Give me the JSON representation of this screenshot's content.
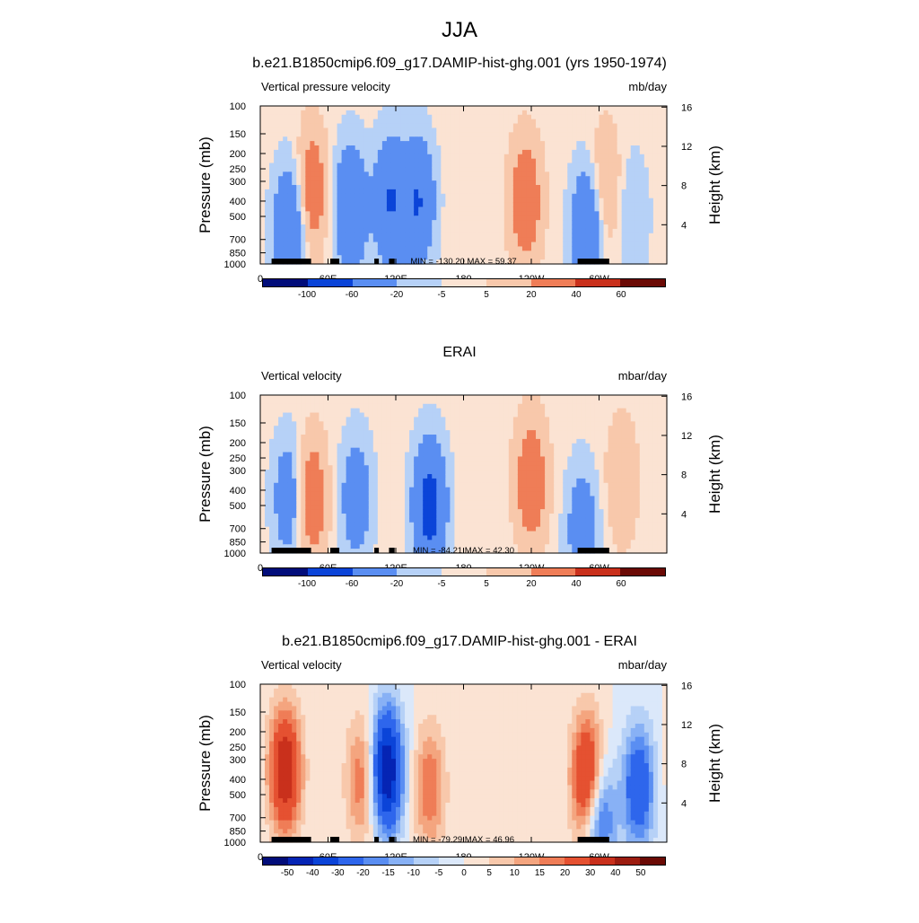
{
  "figure": {
    "title": "JJA"
  },
  "chart_data": [
    {
      "type": "heatmap",
      "title": "b.e21.B1850cmip6.f09_g17.DAMIP-hist-ghg.001 (yrs 1950-1974)",
      "left_label": "Vertical pressure velocity",
      "units": "mb/day",
      "ylabel": "Pressure (mb)",
      "y2label": "Height (km)",
      "x_ticks": [
        "0",
        "60E",
        "120E",
        "180",
        "120W",
        "60W"
      ],
      "y_ticks": [
        "100",
        "150",
        "200",
        "250",
        "300",
        "400",
        "500",
        "700",
        "850",
        "1000"
      ],
      "y2_ticks": [
        "4",
        "8",
        "12",
        "16"
      ],
      "xlim": [
        0,
        360
      ],
      "ylim": [
        1000,
        100
      ],
      "min": -130.2,
      "max": 59.37,
      "minmax_text": "MIN = -130.20  MAX =  59.37",
      "colorbar_labels": [
        "-100",
        "-60",
        "-20",
        "-5",
        "5",
        "20",
        "40",
        "60"
      ],
      "features": [
        {
          "lon": 26,
          "p": 600,
          "value": -60
        },
        {
          "lon": 45,
          "p": 350,
          "value": 40
        },
        {
          "lon": 80,
          "p": 450,
          "value": -60
        },
        {
          "lon": 115,
          "p": 400,
          "value": -60
        },
        {
          "lon": 140,
          "p": 400,
          "value": -60
        },
        {
          "lon": 235,
          "p": 400,
          "value": 40
        },
        {
          "lon": 290,
          "p": 600,
          "value": -60
        },
        {
          "lon": 305,
          "p": 350,
          "value": 30
        },
        {
          "lon": 330,
          "p": 500,
          "value": -20
        }
      ]
    },
    {
      "type": "heatmap",
      "title": "ERAI",
      "left_label": "Vertical velocity",
      "units": "mbar/day",
      "ylabel": "Pressure (mb)",
      "y2label": "Height (km)",
      "x_ticks": [
        "0",
        "60E",
        "120E",
        "180",
        "120W",
        "60W"
      ],
      "y_ticks": [
        "100",
        "150",
        "200",
        "250",
        "300",
        "400",
        "500",
        "700",
        "850",
        "1000"
      ],
      "y2_ticks": [
        "4",
        "8",
        "12",
        "16"
      ],
      "xlim": [
        0,
        360
      ],
      "ylim": [
        1000,
        100
      ],
      "min": -84.21,
      "max": 42.3,
      "minmax_text": "MIN = -84.21  MAX =  42.30",
      "colorbar_labels": [
        "-100",
        "-60",
        "-20",
        "-5",
        "5",
        "20",
        "40",
        "60"
      ],
      "features": [
        {
          "lon": 25,
          "p": 450,
          "value": -40
        },
        {
          "lon": 45,
          "p": 450,
          "value": 40
        },
        {
          "lon": 85,
          "p": 450,
          "value": -40
        },
        {
          "lon": 150,
          "p": 500,
          "value": -80
        },
        {
          "lon": 240,
          "p": 350,
          "value": 40
        },
        {
          "lon": 285,
          "p": 700,
          "value": -40
        },
        {
          "lon": 320,
          "p": 350,
          "value": 20
        }
      ]
    },
    {
      "type": "heatmap",
      "title": "b.e21.B1850cmip6.f09_g17.DAMIP-hist-ghg.001 - ERAI",
      "left_label": "Vertical velocity",
      "units": "mbar/day",
      "ylabel": "Pressure (mb)",
      "y2label": "Height (km)",
      "x_ticks": [
        "0",
        "60E",
        "120E",
        "180",
        "120W",
        "60W"
      ],
      "y_ticks": [
        "100",
        "150",
        "200",
        "250",
        "300",
        "400",
        "500",
        "700",
        "850",
        "1000"
      ],
      "y2_ticks": [
        "4",
        "8",
        "12",
        "16"
      ],
      "xlim": [
        0,
        360
      ],
      "ylim": [
        1000,
        100
      ],
      "min": -79.29,
      "max": 46.96,
      "minmax_text": "MIN = -79.29  MAX =  46.96",
      "colorbar_labels": [
        "-50",
        "-40",
        "-30",
        "-20",
        "-15",
        "-10",
        "-5",
        "0",
        "5",
        "10",
        "15",
        "20",
        "30",
        "40",
        "50"
      ],
      "features": [
        {
          "lon": 22,
          "p": 350,
          "value": 40
        },
        {
          "lon": 90,
          "p": 400,
          "value": 20
        },
        {
          "lon": 112,
          "p": 350,
          "value": -50
        },
        {
          "lon": 150,
          "p": 450,
          "value": 20
        },
        {
          "lon": 290,
          "p": 400,
          "value": 40
        },
        {
          "lon": 300,
          "p": 700,
          "value": -30
        },
        {
          "lon": 335,
          "p": 450,
          "value": -30
        }
      ]
    }
  ],
  "colors": {
    "scale": [
      "#020d7a",
      "#0524b4",
      "#0b44d8",
      "#2e66ec",
      "#5a8ef2",
      "#88b1f5",
      "#b6d1f7",
      "#dbe8fa",
      "#fbe3d3",
      "#f8c8ab",
      "#f4a57f",
      "#ef7d57",
      "#e55131",
      "#c9301c",
      "#9c1c10",
      "#6b0a05"
    ],
    "topography": "#000000"
  }
}
